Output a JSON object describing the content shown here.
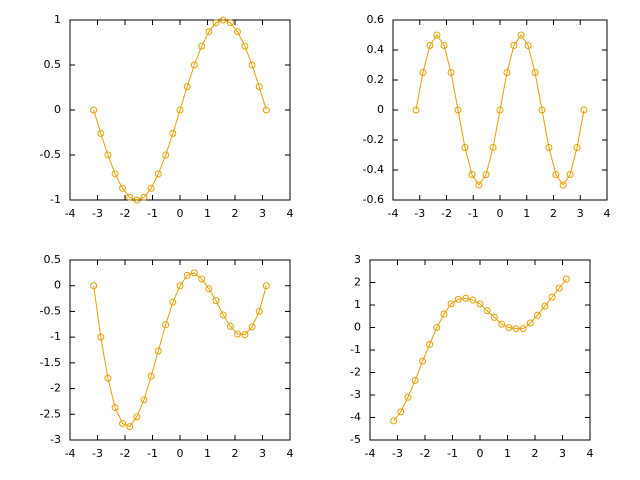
{
  "chart_data": [
    {
      "type": "line",
      "color": "#e6a000",
      "x": [
        -3.14,
        -2.88,
        -2.62,
        -2.36,
        -2.09,
        -1.83,
        -1.57,
        -1.31,
        -1.05,
        -0.79,
        -0.52,
        -0.26,
        0,
        0.26,
        0.52,
        0.79,
        1.05,
        1.31,
        1.57,
        1.83,
        2.09,
        2.36,
        2.62,
        2.88,
        3.14
      ],
      "values": [
        0,
        -0.26,
        -0.5,
        -0.71,
        -0.87,
        -0.97,
        -1,
        -0.97,
        -0.87,
        -0.71,
        -0.5,
        -0.26,
        0,
        0.26,
        0.5,
        0.71,
        0.87,
        0.97,
        1,
        0.97,
        0.87,
        0.71,
        0.5,
        0.26,
        0
      ],
      "xlim": [
        -4,
        4
      ],
      "xticks": [
        -4,
        -3,
        -2,
        -1,
        0,
        1,
        2,
        3,
        4
      ],
      "ylim": [
        -1,
        1
      ],
      "yticks": [
        -1,
        -0.5,
        0,
        0.5,
        1
      ]
    },
    {
      "type": "line",
      "color": "#e6a000",
      "x": [
        -3.14,
        -2.88,
        -2.62,
        -2.36,
        -2.09,
        -1.83,
        -1.57,
        -1.31,
        -1.05,
        -0.79,
        -0.52,
        -0.26,
        0,
        0.26,
        0.52,
        0.79,
        1.05,
        1.31,
        1.57,
        1.83,
        2.09,
        2.36,
        2.62,
        2.88,
        3.14
      ],
      "values": [
        0,
        0.25,
        0.43,
        0.5,
        0.43,
        0.25,
        0,
        -0.25,
        -0.43,
        -0.5,
        -0.43,
        -0.25,
        0,
        0.25,
        0.43,
        0.5,
        0.43,
        0.25,
        0,
        -0.25,
        -0.43,
        -0.5,
        -0.43,
        -0.25,
        0
      ],
      "xlim": [
        -4,
        4
      ],
      "xticks": [
        -4,
        -3,
        -2,
        -1,
        0,
        1,
        2,
        3,
        4
      ],
      "ylim": [
        -0.6,
        0.6
      ],
      "yticks": [
        -0.6,
        -0.4,
        -0.2,
        0,
        0.2,
        0.4,
        0.6
      ]
    },
    {
      "type": "line",
      "color": "#e6a000",
      "x": [
        -3.14,
        -2.88,
        -2.62,
        -2.36,
        -2.09,
        -1.83,
        -1.57,
        -1.31,
        -1.05,
        -0.79,
        -0.52,
        -0.26,
        0,
        0.26,
        0.52,
        0.79,
        1.05,
        1.31,
        1.57,
        1.83,
        2.09,
        2.36,
        2.62,
        2.88,
        3.14
      ],
      "values": [
        0,
        -1,
        -1.8,
        -2.37,
        -2.68,
        -2.74,
        -2.55,
        -2.22,
        -1.76,
        -1.27,
        -0.76,
        -0.32,
        0,
        0.2,
        0.25,
        0.13,
        -0.06,
        -0.29,
        -0.57,
        -0.79,
        -0.94,
        -0.95,
        -0.8,
        -0.5,
        0
      ],
      "xlim": [
        -4,
        4
      ],
      "xticks": [
        -4,
        -3,
        -2,
        -1,
        0,
        1,
        2,
        3,
        4
      ],
      "ylim": [
        -3,
        0.5
      ],
      "yticks": [
        -3,
        -2.5,
        -2,
        -1.5,
        -1,
        -0.5,
        0,
        0.5
      ]
    },
    {
      "type": "line",
      "color": "#e6a000",
      "x": [
        -3.14,
        -2.88,
        -2.62,
        -2.36,
        -2.09,
        -1.83,
        -1.57,
        -1.31,
        -1.05,
        -0.79,
        -0.52,
        -0.26,
        0,
        0.26,
        0.52,
        0.79,
        1.05,
        1.31,
        1.57,
        1.83,
        2.09,
        2.36,
        2.62,
        2.88,
        3.14
      ],
      "values": [
        -4.15,
        -3.75,
        -3.1,
        -2.35,
        -1.5,
        -0.75,
        0,
        0.6,
        1.05,
        1.25,
        1.3,
        1.22,
        1.05,
        0.75,
        0.45,
        0.15,
        0,
        -0.05,
        -0.05,
        0.2,
        0.55,
        0.95,
        1.35,
        1.75,
        2.15
      ],
      "xlim": [
        -4,
        4
      ],
      "xticks": [
        -4,
        -3,
        -2,
        -1,
        0,
        1,
        2,
        3,
        4
      ],
      "ylim": [
        -5,
        3
      ],
      "yticks": [
        -5,
        -4,
        -3,
        -2,
        -1,
        0,
        1,
        2,
        3
      ]
    }
  ]
}
